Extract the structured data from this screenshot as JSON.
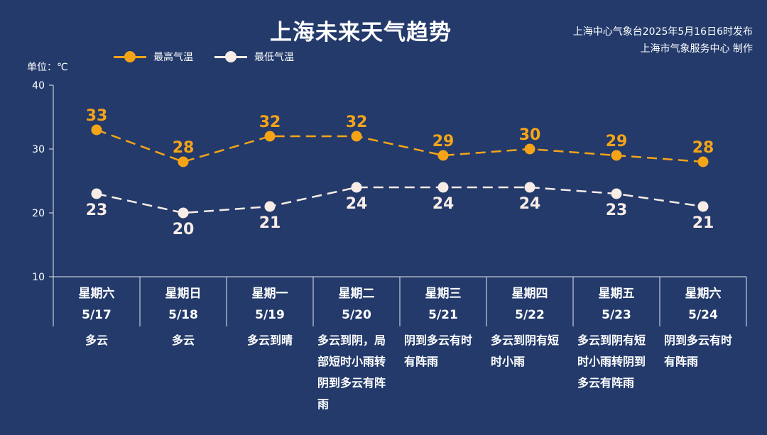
{
  "header": {
    "title": "上海未来天气趋势",
    "source_line1": "上海中心气象台2025年5月16日6时发布",
    "source_line2": "上海市气象服务中心 制作"
  },
  "unit_label": "单位：℃",
  "legend": {
    "high": "最高气温",
    "low": "最低气温"
  },
  "colors": {
    "background": "#233a6b",
    "high": "#f5a418",
    "low": "#f8ece6",
    "axis": "#e8e8e8"
  },
  "days": [
    {
      "weekday": "星期六",
      "date": "5/17",
      "weather": "多云"
    },
    {
      "weekday": "星期日",
      "date": "5/18",
      "weather": "多云"
    },
    {
      "weekday": "星期一",
      "date": "5/19",
      "weather": "多云到晴"
    },
    {
      "weekday": "星期二",
      "date": "5/20",
      "weather": "多云到阴，局部短时小雨转阴到多云有阵雨"
    },
    {
      "weekday": "星期三",
      "date": "5/21",
      "weather": "阴到多云有时有阵雨"
    },
    {
      "weekday": "星期四",
      "date": "5/22",
      "weather": "多云到阴有短时小雨"
    },
    {
      "weekday": "星期五",
      "date": "5/23",
      "weather": "多云到阴有短时小雨转阴到多云有阵雨"
    },
    {
      "weekday": "星期六",
      "date": "5/24",
      "weather": "阴到多云有时有阵雨"
    }
  ],
  "chart_data": {
    "type": "line",
    "title": "上海未来天气趋势",
    "ylabel": "单位：℃",
    "ylim": [
      10,
      40
    ],
    "yticks": [
      10,
      20,
      30,
      40
    ],
    "grid": false,
    "legend_position": "top-left",
    "categories": [
      "5/17",
      "5/18",
      "5/19",
      "5/20",
      "5/21",
      "5/22",
      "5/23",
      "5/24"
    ],
    "series": [
      {
        "name": "最高气温",
        "values": [
          33,
          28,
          32,
          32,
          29,
          30,
          29,
          28
        ]
      },
      {
        "name": "最低气温",
        "values": [
          23,
          20,
          21,
          24,
          24,
          24,
          23,
          21
        ]
      }
    ]
  }
}
